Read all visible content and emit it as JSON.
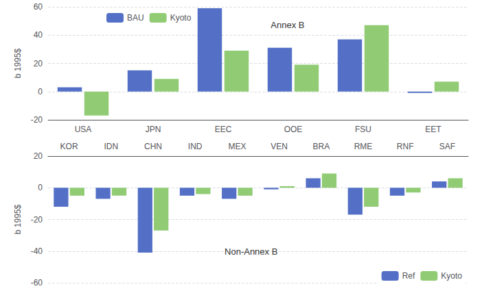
{
  "chart_data": [
    {
      "type": "bar",
      "ylabel": "b 1995$",
      "annotations": [
        "Annex B"
      ],
      "categories": [
        "USA",
        "JPN",
        "EEC",
        "OOE",
        "FSU",
        "EET"
      ],
      "series": [
        {
          "name": "BAU",
          "color": "#5470c6",
          "values": [
            3,
            15,
            59,
            31,
            37,
            -1
          ]
        },
        {
          "name": "Kyoto",
          "color": "#91cc75",
          "values": [
            -17,
            9,
            29,
            19,
            47,
            7
          ]
        }
      ],
      "ylim": [
        -20,
        60
      ],
      "yticks": [
        -20,
        0,
        20,
        40,
        60
      ],
      "grid": true,
      "legend": "upper left"
    },
    {
      "type": "bar",
      "ylabel": "b 1995$",
      "annotations": [
        "Non-Annex B"
      ],
      "categories": [
        "KOR",
        "IDN",
        "CHN",
        "IND",
        "MEX",
        "VEN",
        "BRA",
        "RME",
        "RNF",
        "SAF"
      ],
      "series": [
        {
          "name": "Ref",
          "color": "#5470c6",
          "values": [
            -12,
            -7,
            -41,
            -5,
            -7,
            -1,
            6,
            -17,
            -5,
            4
          ]
        },
        {
          "name": "Kyoto",
          "color": "#91cc75",
          "values": [
            -5,
            -5,
            -27,
            -4,
            -5,
            1,
            9,
            -12,
            -3,
            6
          ]
        }
      ],
      "ylim": [
        -60,
        20
      ],
      "yticks": [
        -60,
        -40,
        -20,
        0,
        20
      ],
      "grid": true,
      "legend": "lower right"
    }
  ]
}
